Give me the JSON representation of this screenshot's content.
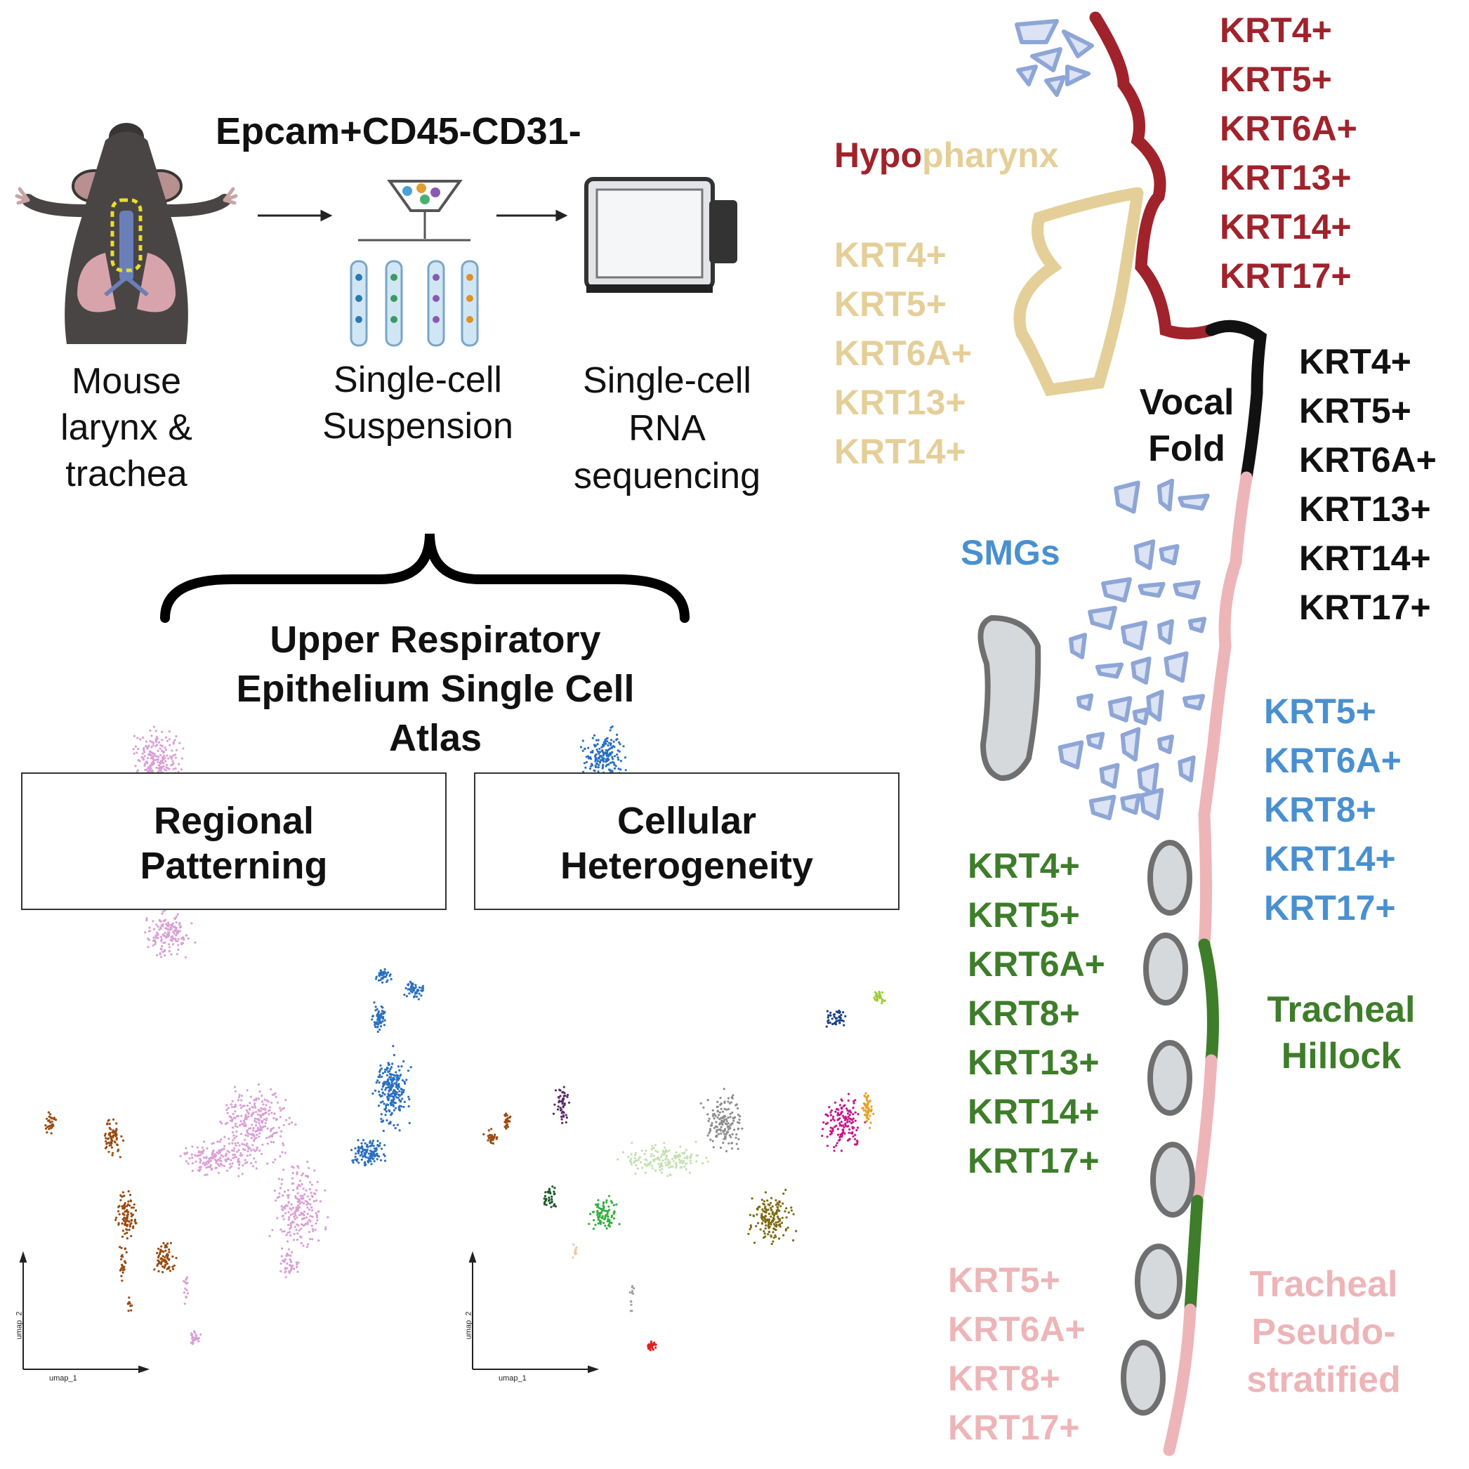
{
  "workflow": {
    "sort_label": "Epcam+CD45-CD31-",
    "steps": [
      {
        "lines": [
          "Mouse",
          "larynx &",
          "trachea"
        ]
      },
      {
        "lines": [
          "Single-cell",
          "Suspension"
        ]
      },
      {
        "lines": [
          "Single-cell",
          "RNA",
          "sequencing"
        ]
      }
    ]
  },
  "atlas": {
    "title_lines": [
      "Upper Respiratory",
      "Epithelium Single Cell",
      "Atlas"
    ]
  },
  "panels": [
    {
      "lines": [
        "Regional",
        "Patterning"
      ],
      "xlabel": "umap_1",
      "ylabel": "umap_2"
    },
    {
      "lines": [
        "Cellular",
        "Heterogeneity"
      ],
      "xlabel": "umap_1",
      "ylabel": "umap_2"
    }
  ],
  "anatomy": {
    "hypopharynx": {
      "part1": "Hypo",
      "part2": "pharynx"
    },
    "vocal_fold": [
      "Vocal",
      "Fold"
    ],
    "smgs": "SMGs",
    "tracheal_hillock": [
      "Tracheal",
      "Hillock"
    ],
    "tracheal_pseudo": [
      "Tracheal",
      "Pseudo-",
      "stratified"
    ]
  },
  "marker_groups": {
    "hypopharynx_red": [
      "KRT4+",
      "KRT5+",
      "KRT6A+",
      "KRT13+",
      "KRT14+",
      "KRT17+"
    ],
    "hypopharynx_tan": [
      "KRT4+",
      "KRT5+",
      "KRT6A+",
      "KRT13+",
      "KRT14+"
    ],
    "vocal_fold": [
      "KRT4+",
      "KRT5+",
      "KRT6A+",
      "KRT13+",
      "KRT14+",
      "KRT17+"
    ],
    "smg": [
      "KRT5+",
      "KRT6A+",
      "KRT8+",
      "KRT14+",
      "KRT17+"
    ],
    "hillock": [
      "KRT4+",
      "KRT5+",
      "KRT6A+",
      "KRT8+",
      "KRT13+",
      "KRT14+",
      "KRT17+"
    ],
    "pseudostratified": [
      "KRT5+",
      "KRT6A+",
      "KRT8+",
      "KRT17+"
    ]
  },
  "colors": {
    "dark_red": "#A0232C",
    "tan": "#E5CF98",
    "black": "#111111",
    "blue": "#4A90D0",
    "green": "#3E7D2A",
    "pink": "#EDB5B8",
    "umap_pink": "#D9A0D6",
    "umap_blue": "#2A6FC0",
    "umap_brown": "#9A4A10"
  }
}
